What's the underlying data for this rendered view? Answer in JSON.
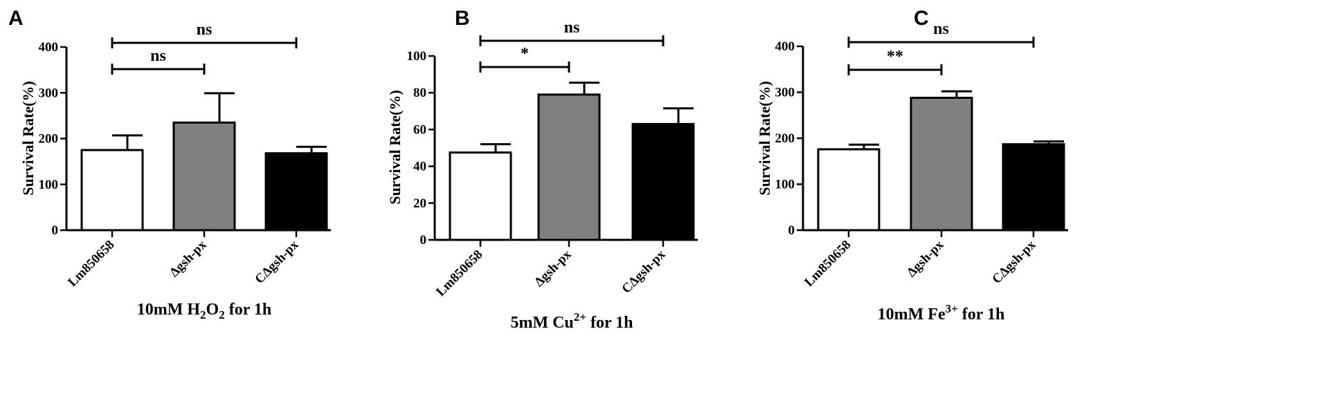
{
  "chart_data": [
    {
      "panel": "A",
      "type": "bar",
      "categories": [
        "Lm850658",
        "Δgsh-px",
        "CΔgsh-px"
      ],
      "values": [
        175,
        235,
        168
      ],
      "errors": [
        32,
        64,
        14
      ],
      "colors": [
        "#ffffff",
        "#808080",
        "#000000"
      ],
      "ylabel": "Survival  Rate(%)",
      "xlabel_parts": [
        {
          "text": "10mM H",
          "sub": ""
        },
        {
          "text": "2",
          "sub": "sub"
        },
        {
          "text": "O",
          "sub": ""
        },
        {
          "text": "2",
          "sub": "sub"
        },
        {
          "text": " for 1h",
          "sub": ""
        }
      ],
      "ylim": [
        0,
        400
      ],
      "yticks": [
        0,
        100,
        200,
        300,
        400
      ],
      "yticklabels": [
        "0",
        "100",
        "200",
        "300",
        "400"
      ],
      "significance": [
        {
          "from": 0,
          "to": 2,
          "label": "ns",
          "level": 0
        },
        {
          "from": 0,
          "to": 1,
          "label": "ns",
          "level": 1
        }
      ]
    },
    {
      "panel": "B",
      "type": "bar",
      "categories": [
        "Lm850658",
        "Δgsh-px",
        "CΔgsh-px"
      ],
      "values": [
        47.5,
        79,
        63
      ],
      "errors": [
        4.5,
        6.5,
        8.5
      ],
      "colors": [
        "#ffffff",
        "#808080",
        "#000000"
      ],
      "ylabel": "Survival  Rate(%)",
      "xlabel_parts": [
        {
          "text": "5mM Cu",
          "sub": ""
        },
        {
          "text": "2+",
          "sub": "sup"
        },
        {
          "text": " for 1h",
          "sub": ""
        }
      ],
      "ylim": [
        0,
        100
      ],
      "yticks": [
        0,
        20,
        40,
        60,
        80,
        100
      ],
      "yticklabels": [
        "0",
        "20",
        "40",
        "60",
        "80",
        "100"
      ],
      "significance": [
        {
          "from": 0,
          "to": 2,
          "label": "ns",
          "level": 0
        },
        {
          "from": 0,
          "to": 1,
          "label": "*",
          "level": 1
        }
      ]
    },
    {
      "panel": "C",
      "type": "bar",
      "categories": [
        "Lm850658",
        "Δgsh-px",
        "CΔgsh-px"
      ],
      "values": [
        176,
        288,
        187
      ],
      "errors": [
        10,
        14,
        6
      ],
      "colors": [
        "#ffffff",
        "#808080",
        "#000000"
      ],
      "ylabel": "Survival  Rate(%)",
      "xlabel_parts": [
        {
          "text": "10mM Fe",
          "sub": ""
        },
        {
          "text": "3+",
          "sub": "sup"
        },
        {
          "text": " for 1h",
          "sub": ""
        }
      ],
      "ylim": [
        0,
        400
      ],
      "yticks": [
        0,
        100,
        200,
        300,
        400
      ],
      "yticklabels": [
        "0",
        "100",
        "200",
        "300",
        "400"
      ],
      "significance": [
        {
          "from": 0,
          "to": 2,
          "label": "ns",
          "level": 0
        },
        {
          "from": 0,
          "to": 1,
          "label": "**",
          "level": 1
        }
      ]
    }
  ]
}
